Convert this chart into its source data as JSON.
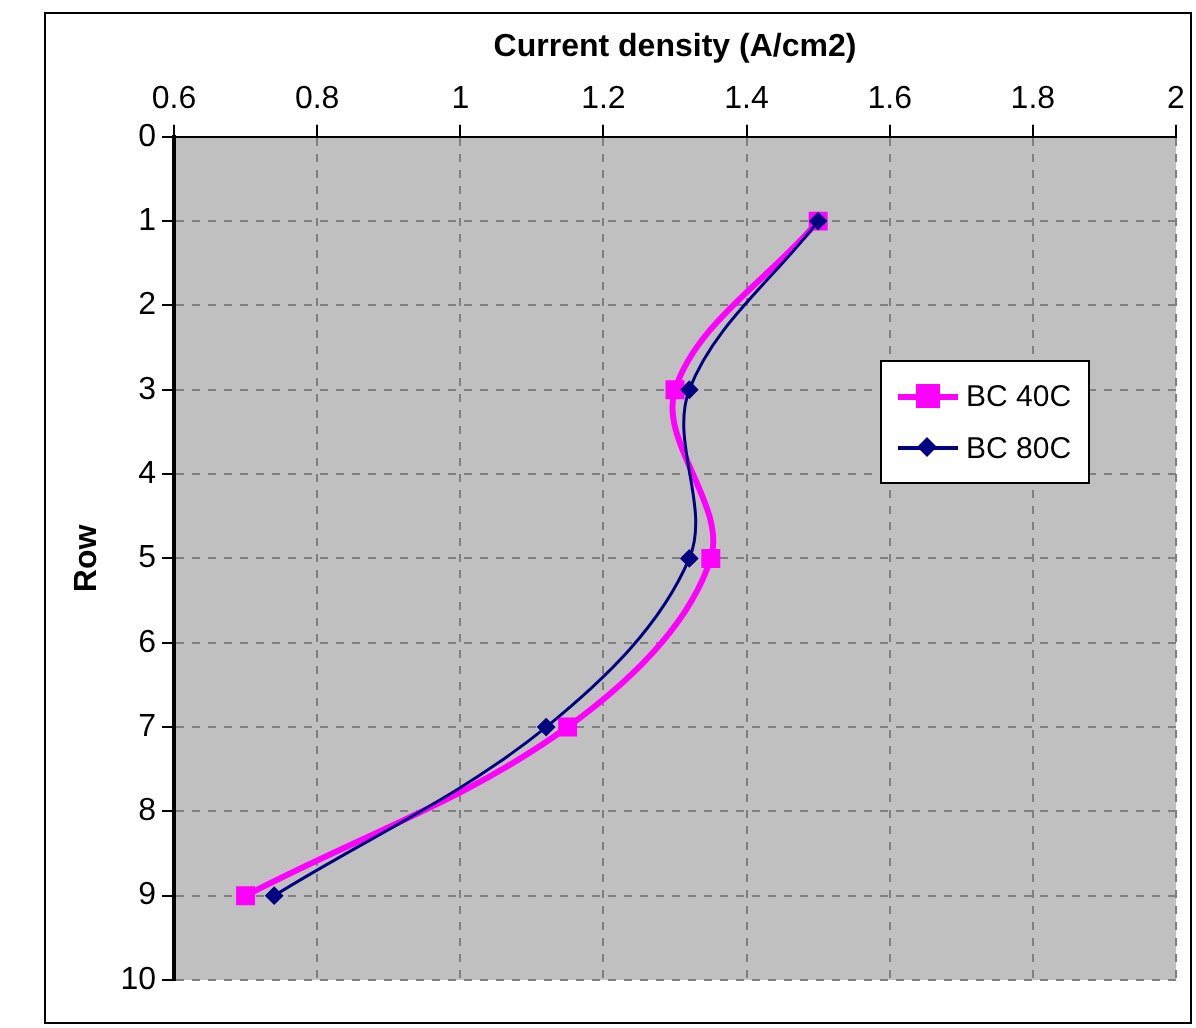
{
  "chart_data": {
    "type": "line",
    "xlabel": "Current density (A/cm2)",
    "ylabel": "Row",
    "xlim": [
      0.6,
      2
    ],
    "xticks": [
      0.6,
      0.8,
      1,
      1.2,
      1.4,
      1.6,
      1.8,
      2
    ],
    "ylim": [
      10,
      0
    ],
    "yticks": [
      0,
      1,
      2,
      3,
      4,
      5,
      6,
      7,
      8,
      9,
      10
    ],
    "grid": true,
    "legend": "right",
    "series": [
      {
        "name": "BC 40C",
        "color": "#ff00ff",
        "marker": "square",
        "x": [
          1.5,
          1.3,
          1.35,
          1.15,
          0.7
        ],
        "values": [
          1,
          3,
          5,
          7,
          9
        ]
      },
      {
        "name": "BC 80C",
        "color": "#000080",
        "marker": "diamond",
        "x": [
          1.5,
          1.32,
          1.32,
          1.12,
          0.74
        ],
        "values": [
          1,
          3,
          5,
          7,
          9
        ]
      }
    ]
  }
}
